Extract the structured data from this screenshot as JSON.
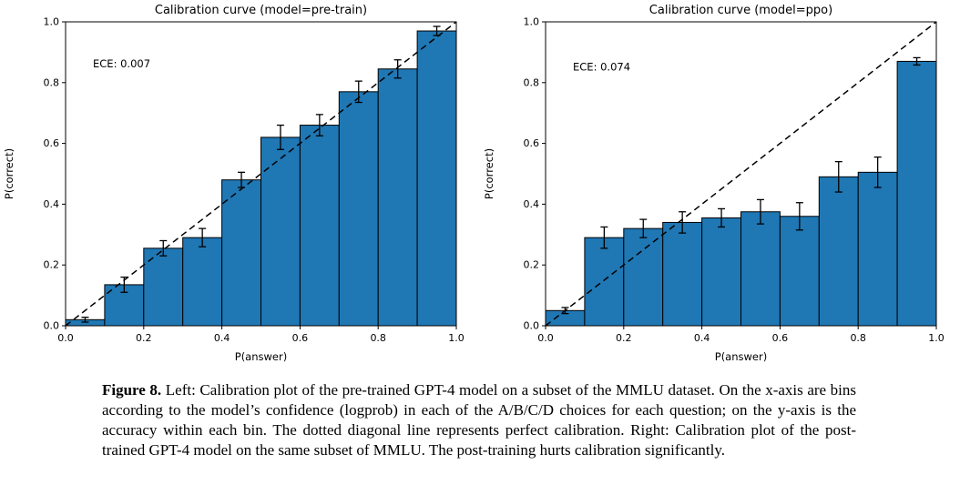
{
  "page": {
    "background": "#ffffff"
  },
  "caption": {
    "label": "Figure 8.",
    "text": " Left: Calibration plot of the pre-trained GPT-4 model on a subset of the MMLU dataset. On the x-axis are bins according to the model’s confidence (logprob) in each of the A/B/C/D choices for each question; on the y-axis is the accuracy within each bin. The dotted diagonal line represents perfect calibration. Right: Calibration plot of the post-trained GPT-4 model on the same subset of MMLU. The post-training hurts calibration significantly."
  },
  "chart_data": [
    {
      "type": "bar",
      "title": "Calibration curve (model=pre-train)",
      "xlabel": "P(answer)",
      "ylabel": "P(correct)",
      "annotation": "ECE: 0.007",
      "annotation_xy": [
        0.07,
        0.85
      ],
      "xlim": [
        0,
        1
      ],
      "ylim": [
        0,
        1
      ],
      "xticks": [
        0,
        0.2,
        0.4,
        0.6,
        0.8,
        1
      ],
      "yticks": [
        0,
        0.2,
        0.4,
        0.6,
        0.8,
        1
      ],
      "bin_edges": [
        0,
        0.1,
        0.2,
        0.3,
        0.4,
        0.5,
        0.6,
        0.7,
        0.8,
        0.9,
        1
      ],
      "values": [
        0.02,
        0.135,
        0.255,
        0.29,
        0.48,
        0.62,
        0.66,
        0.77,
        0.845,
        0.97
      ],
      "errors": [
        0.008,
        0.025,
        0.025,
        0.03,
        0.025,
        0.04,
        0.035,
        0.035,
        0.03,
        0.015
      ],
      "bar_color": "#1f77b4",
      "bar_edge_color": "#000000",
      "diagonal_line": true,
      "grid": false,
      "legend": null
    },
    {
      "type": "bar",
      "title": "Calibration curve (model=ppo)",
      "xlabel": "P(answer)",
      "ylabel": "P(correct)",
      "annotation": "ECE: 0.074",
      "annotation_xy": [
        0.07,
        0.84
      ],
      "xlim": [
        0,
        1
      ],
      "ylim": [
        0,
        1
      ],
      "xticks": [
        0,
        0.2,
        0.4,
        0.6,
        0.8,
        1
      ],
      "yticks": [
        0,
        0.2,
        0.4,
        0.6,
        0.8,
        1
      ],
      "bin_edges": [
        0,
        0.1,
        0.2,
        0.3,
        0.4,
        0.5,
        0.6,
        0.7,
        0.8,
        0.9,
        1
      ],
      "values": [
        0.05,
        0.29,
        0.32,
        0.34,
        0.355,
        0.375,
        0.36,
        0.49,
        0.505,
        0.87
      ],
      "errors": [
        0.01,
        0.035,
        0.03,
        0.035,
        0.03,
        0.04,
        0.045,
        0.05,
        0.05,
        0.012
      ],
      "bar_color": "#1f77b4",
      "bar_edge_color": "#000000",
      "diagonal_line": true,
      "grid": false,
      "legend": null
    }
  ]
}
